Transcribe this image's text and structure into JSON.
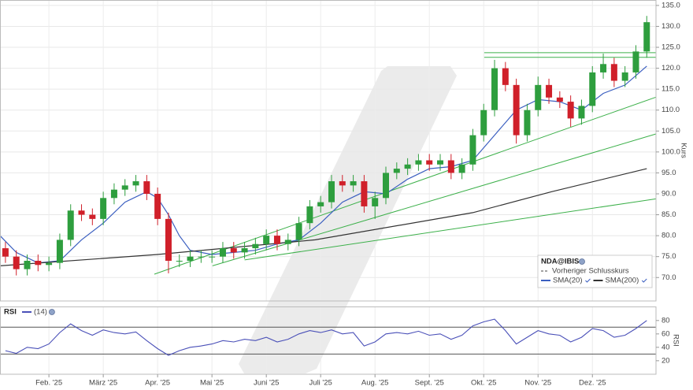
{
  "chart_data": [
    {
      "type": "candlestick",
      "ylabel": "Kurs",
      "xlim": [
        0.1,
        12.17
      ],
      "ylim": [
        64.4,
        136.3
      ],
      "yticks": [
        {
          "value": 70,
          "label": "70.0"
        },
        {
          "value": 75,
          "label": "75.0"
        },
        {
          "value": 80,
          "label": "80.0"
        },
        {
          "value": 85,
          "label": "85.0"
        },
        {
          "value": 90,
          "label": "90.0"
        },
        {
          "value": 95,
          "label": "95.0"
        },
        {
          "value": 100,
          "label": "100.0"
        },
        {
          "value": 105,
          "label": "105.0"
        },
        {
          "value": 110,
          "label": "110.0"
        },
        {
          "value": 115,
          "label": "115.0"
        },
        {
          "value": 120,
          "label": "120.0"
        },
        {
          "value": 125,
          "label": "125.0"
        },
        {
          "value": 130,
          "label": "130.0"
        },
        {
          "value": 135,
          "label": "135.0"
        }
      ],
      "grid": true,
      "up_color": "#2e9e3e",
      "down_color": "#d0202a",
      "x": [
        0.2,
        0.4,
        0.6,
        0.8,
        1.0,
        1.2,
        1.4,
        1.6,
        1.8,
        2.0,
        2.2,
        2.4,
        2.6,
        2.8,
        3.0,
        3.2,
        3.4,
        3.6,
        3.8,
        4.0,
        4.2,
        4.4,
        4.6,
        4.8,
        5.0,
        5.2,
        5.4,
        5.6,
        5.8,
        6.0,
        6.2,
        6.4,
        6.6,
        6.8,
        7.0,
        7.2,
        7.4,
        7.6,
        7.8,
        8.0,
        8.2,
        8.4,
        8.6,
        8.8,
        9.0,
        9.2,
        9.4,
        9.6,
        9.8,
        10.0,
        10.2,
        10.4,
        10.6,
        10.8,
        11.0,
        11.2,
        11.4,
        11.6,
        11.8,
        12.0
      ],
      "open": [
        77,
        75,
        72,
        74,
        73,
        73.5,
        79,
        86,
        85,
        84,
        89,
        91,
        92,
        93,
        90,
        84,
        74,
        74,
        75,
        75,
        75,
        77,
        76,
        77,
        78,
        80,
        78,
        79,
        83,
        87,
        88,
        93,
        92,
        93,
        87,
        89,
        95,
        96,
        97,
        98,
        97,
        98,
        95,
        97,
        104,
        110,
        120,
        116,
        104,
        110,
        116,
        113,
        112,
        108,
        111,
        119,
        121,
        117,
        119,
        124
      ],
      "high": [
        78.5,
        76.5,
        75.5,
        75.5,
        75,
        80.5,
        87.5,
        87.5,
        86.5,
        90.5,
        92.5,
        93.5,
        94.5,
        94.5,
        91.5,
        85.5,
        75.5,
        76.5,
        76.5,
        76.5,
        78.5,
        78.5,
        78.5,
        79.5,
        81.5,
        81.5,
        80.5,
        84.5,
        88.5,
        89.5,
        94.5,
        94.5,
        94.5,
        94.5,
        90.5,
        96.5,
        97.5,
        98.5,
        99.5,
        99.5,
        99.5,
        99.5,
        98.5,
        105.5,
        111.5,
        122,
        121.5,
        117.5,
        111.5,
        118,
        117.5,
        114.5,
        113.5,
        112.5,
        120.5,
        123.5,
        122.5,
        120.5,
        125.5,
        132.5
      ],
      "low": [
        73.5,
        70.5,
        70.5,
        71.5,
        71.5,
        72,
        77.5,
        83.5,
        82.5,
        82.5,
        87.5,
        89.5,
        90.5,
        88.5,
        82.5,
        71,
        72.5,
        72.5,
        73.5,
        73.5,
        73.5,
        74.5,
        74.5,
        75.5,
        76.5,
        76.5,
        76.5,
        77.5,
        81.5,
        85.5,
        86.5,
        90.5,
        90.5,
        85.5,
        84,
        87.5,
        93.5,
        94.5,
        95.5,
        95.5,
        95.5,
        93.5,
        93.5,
        95.5,
        102.5,
        108.5,
        114.5,
        102,
        102.5,
        108.5,
        111.5,
        110.5,
        106,
        106.5,
        109.5,
        117.5,
        115.5,
        115.5,
        117.5,
        122.5
      ],
      "close": [
        75,
        72,
        74,
        73,
        73.5,
        79,
        86,
        85,
        84,
        89,
        91,
        92,
        93,
        90,
        84,
        74,
        74,
        75,
        75,
        75,
        77,
        76,
        77,
        78,
        80,
        78,
        79,
        83,
        87,
        88,
        93,
        92,
        93,
        87,
        89,
        95,
        96,
        97,
        98,
        97,
        98,
        95,
        97,
        104,
        110,
        120,
        116,
        104,
        110,
        116,
        113,
        112,
        108,
        111,
        119,
        121,
        117,
        119,
        124,
        131
      ],
      "legend": {
        "title": "NDA@IBIS",
        "position": "lower right"
      },
      "series": [
        {
          "name": "Vorheriger Schlusskurs",
          "color": "#444444",
          "dash": true
        },
        {
          "name": "SMA(20)",
          "color": "#3b5fc0",
          "x": [
            0.1,
            0.4,
            0.8,
            1.2,
            1.6,
            2.0,
            2.4,
            2.8,
            3.0,
            3.2,
            3.4,
            3.6,
            4.0,
            4.4,
            4.8,
            5.2,
            5.6,
            6.0,
            6.4,
            6.8,
            7.2,
            7.6,
            8.0,
            8.4,
            8.8,
            9.2,
            9.6,
            10.0,
            10.4,
            10.8,
            11.2,
            11.6,
            12.0
          ],
          "values": [
            80,
            76,
            73.5,
            74,
            79,
            83,
            88,
            90.5,
            89,
            85,
            80,
            76.5,
            75.5,
            76,
            76.5,
            78,
            79,
            83,
            88,
            90.5,
            90,
            93.5,
            96,
            96.5,
            98,
            104,
            110,
            112.5,
            112,
            110,
            114,
            116,
            120.5
          ]
        },
        {
          "name": "SMA(200)",
          "color": "#333333",
          "x": [
            0.1,
            3.0,
            5.9,
            8.8,
            10.25,
            12.0
          ],
          "values": [
            72.8,
            75.5,
            79,
            85.5,
            90.5,
            96
          ]
        }
      ],
      "trendline_color": "#3cb04a",
      "trendlines": [
        {
          "x": [
            2.94,
            12.17
          ],
          "values": [
            70.8,
            113.1
          ]
        },
        {
          "x": [
            4.01,
            12.17
          ],
          "values": [
            72.8,
            104.3
          ]
        },
        {
          "x": [
            4.6,
            12.17
          ],
          "values": [
            74.2,
            88.8
          ]
        },
        {
          "x": [
            9.01,
            12.17
          ],
          "values": [
            123.7,
            123.7
          ]
        },
        {
          "x": [
            9.01,
            12.17
          ],
          "values": [
            122.6,
            122.6
          ]
        }
      ]
    },
    {
      "type": "line",
      "title": "RSI",
      "ylabel": "RSI",
      "xlim": [
        0.1,
        12.17
      ],
      "ylim": [
        1,
        88
      ],
      "yticks": [
        20,
        40,
        60,
        80
      ],
      "levels": [
        30,
        70
      ],
      "xticks": [
        {
          "value": 1,
          "label": "Feb. '25"
        },
        {
          "value": 2,
          "label": "März '25"
        },
        {
          "value": 3,
          "label": "Apr. '25"
        },
        {
          "value": 4,
          "label": "Mai '25"
        },
        {
          "value": 5,
          "label": "Juni '25"
        },
        {
          "value": 6,
          "label": "Juli '25"
        },
        {
          "value": 7,
          "label": "Aug. '25"
        },
        {
          "value": 8,
          "label": "Sept. '25"
        },
        {
          "value": 9,
          "label": "Okt. '25"
        },
        {
          "value": 10,
          "label": "Nov. '25"
        },
        {
          "value": 11,
          "label": "Dez. '25"
        }
      ],
      "x": [
        0.2,
        0.4,
        0.6,
        0.8,
        1.0,
        1.2,
        1.4,
        1.6,
        1.8,
        2.0,
        2.2,
        2.4,
        2.6,
        2.8,
        3.0,
        3.2,
        3.4,
        3.6,
        3.8,
        4.0,
        4.2,
        4.4,
        4.6,
        4.8,
        5.0,
        5.2,
        5.4,
        5.6,
        5.8,
        6.0,
        6.2,
        6.4,
        6.6,
        6.8,
        7.0,
        7.2,
        7.4,
        7.6,
        7.8,
        8.0,
        8.2,
        8.4,
        8.6,
        8.8,
        9.0,
        9.2,
        9.4,
        9.6,
        9.8,
        10.0,
        10.2,
        10.4,
        10.6,
        10.8,
        11.0,
        11.2,
        11.4,
        11.6,
        11.8,
        12.0
      ],
      "series": [
        {
          "name": "(14)",
          "color": "#4a50b8",
          "values": [
            35,
            31,
            40,
            38,
            45,
            62,
            75,
            65,
            58,
            66,
            62,
            60,
            63,
            50,
            38,
            28,
            35,
            40,
            42,
            45,
            50,
            48,
            52,
            50,
            55,
            48,
            52,
            60,
            65,
            62,
            66,
            60,
            62,
            42,
            48,
            60,
            62,
            60,
            64,
            58,
            60,
            52,
            58,
            72,
            78,
            82,
            65,
            45,
            55,
            65,
            60,
            58,
            48,
            55,
            68,
            65,
            55,
            58,
            68,
            80
          ]
        }
      ]
    }
  ]
}
